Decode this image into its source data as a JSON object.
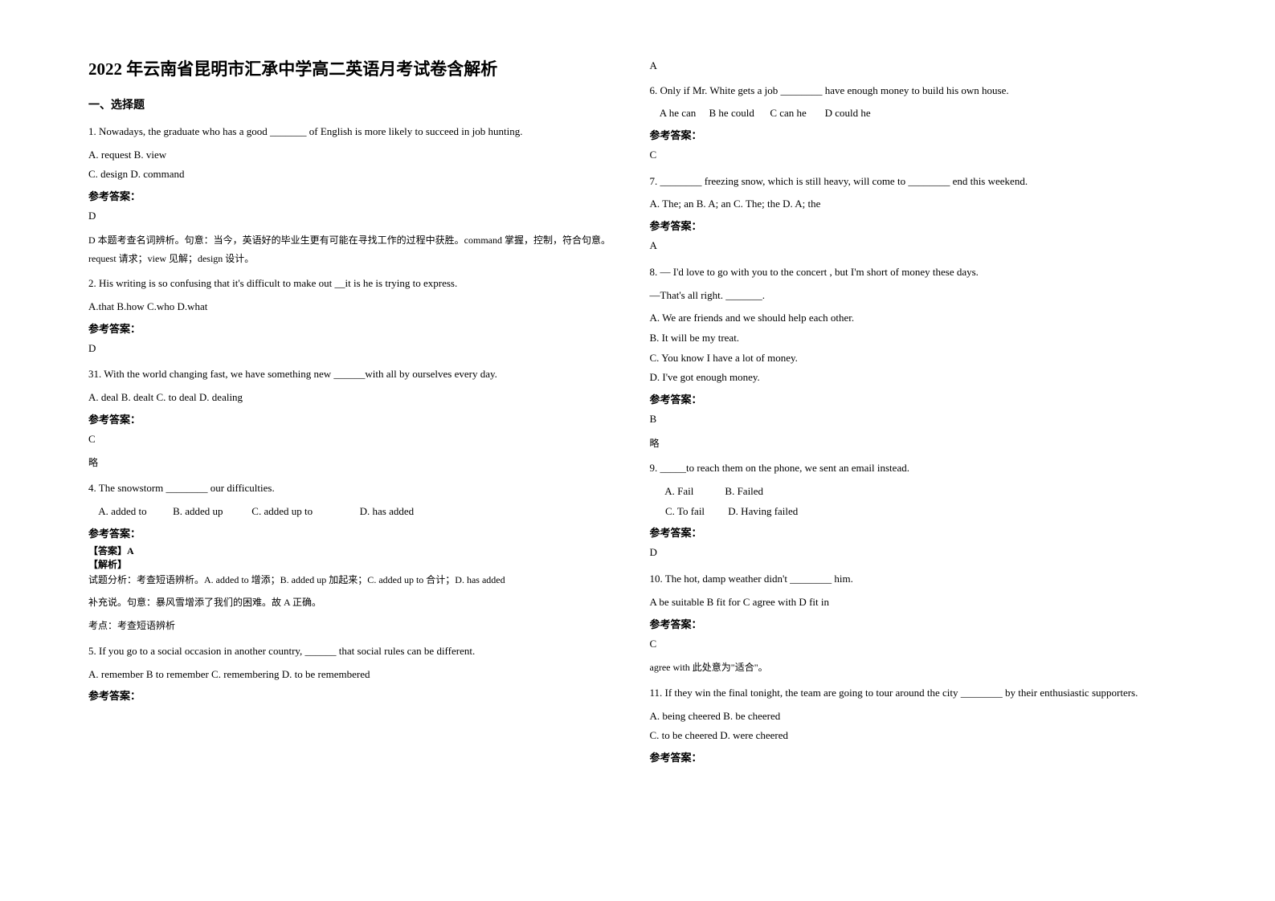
{
  "title": "2022 年云南省昆明市汇承中学高二英语月考试卷含解析",
  "section1_heading": "一、选择题",
  "answer_label": "参考答案：",
  "q1": {
    "text": "1. Nowadays, the graduate who has a good _______ of English is more likely to succeed in job hunting.",
    "opts1": "A. request   B. view",
    "opts2": "C. design   D. command",
    "answer": "D",
    "explain": "D 本题考查名词辨析。句意：当今，英语好的毕业生更有可能在寻找工作的过程中获胜。command 掌握，控制，符合句意。request 请求；view 见解；design 设计。"
  },
  "q2": {
    "text": "2. His writing is so confusing that it's difficult to make out __it is he is trying to express.",
    "opts": "A.that  B.how  C.who   D.what",
    "answer": "D"
  },
  "q3": {
    "text": "31. With the world changing fast, we have something new ______with all by ourselves every day.",
    "opts": "A. deal        B. dealt            C. to deal        D. dealing",
    "answer": "C",
    "explain": "略"
  },
  "q4": {
    "text": "4. The snowstorm ________ our difficulties.",
    "opts": "    A. added to          B. added up           C. added up to                  D. has added",
    "answer_label": "【答案】A",
    "explain_label": "【解析】",
    "explain1": "试题分析：考查短语辨析。A. added to 增添；B. added up 加起来；C. added up to 合计；D. has added",
    "explain2": "补充说。句意：暴风雪增添了我们的困难。故 A 正确。",
    "explain3": "考点：考查短语辨析"
  },
  "q5": {
    "text": "5. If you go to a social occasion in another country, ______ that social rules can be different.",
    "opts": "A. remember       B to remember    C. remembering   D. to be remembered",
    "answer": "A"
  },
  "q6": {
    "text": "6. Only if Mr. White gets a job ________ have enough money to build his own house.",
    "opts": "    A he can     B he could      C can he       D could he",
    "answer": "C"
  },
  "q7": {
    "text": "7. ________ freezing snow, which is still heavy, will come to ________ end this weekend.",
    "opts": "A. The; an   B. A; an    C. The; the      D. A; the",
    "answer": "A"
  },
  "q8": {
    "text": "8. — I'd love to go with you to the concert , but I'm short of money these days.",
    "line2": "  —That's all right. _______.",
    "optA": "  A. We are friends and we should help each other.",
    "optB": "  B. It will be my treat.",
    "optC": "  C. You know I have a lot of money.",
    "optD": "  D. I've got enough money.",
    "answer": "B",
    "explain": "略"
  },
  "q9": {
    "text": "9. _____to reach them on the phone, we sent an email instead.",
    "opts1": "      A. Fail            B. Failed",
    "opts2": "      C. To fail         D. Having failed",
    "answer": "D"
  },
  "q10": {
    "text": "10. The hot, damp weather didn't ________ him.",
    "opts": "A be suitable   B fit for  C agree with  D fit in",
    "answer": "C",
    "explain": "agree with 此处意为\"适合\"。"
  },
  "q11": {
    "text": "11. If they win the final tonight, the team are going to tour around the city ________ by their enthusiastic supporters.",
    "opts1": "A. being cheered        B. be cheered",
    "opts2": "C. to be cheered        D. were cheered"
  }
}
